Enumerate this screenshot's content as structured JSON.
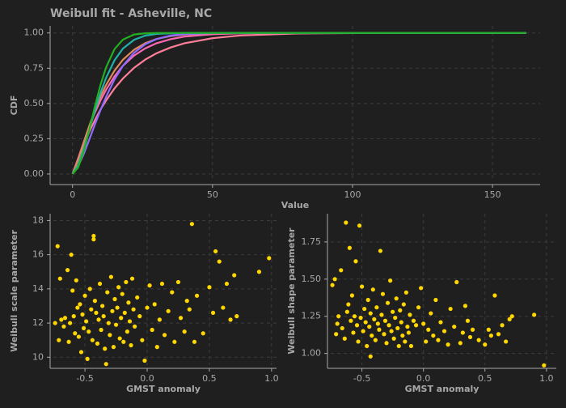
{
  "chart_data": [
    {
      "type": "line",
      "title": "Weibull fit - Asheville, NC",
      "xlabel": "Value",
      "ylabel": "CDF",
      "x": [
        0,
        2,
        4,
        6,
        8,
        10,
        12,
        15,
        18,
        22,
        26,
        30,
        35,
        40,
        50,
        60,
        80,
        100,
        130,
        162
      ],
      "series": [
        {
          "color": "#ff7f9a",
          "values": [
            0,
            0.106,
            0.208,
            0.3,
            0.383,
            0.457,
            0.522,
            0.607,
            0.677,
            0.753,
            0.811,
            0.856,
            0.897,
            0.927,
            0.963,
            0.982,
            0.996,
            0.999,
            1,
            1
          ]
        },
        {
          "color": "#ff69b4",
          "values": [
            0,
            0.11,
            0.227,
            0.337,
            0.436,
            0.522,
            0.598,
            0.692,
            0.767,
            0.84,
            0.891,
            0.927,
            0.956,
            0.974,
            0.991,
            0.997,
            1,
            1,
            1,
            1
          ]
        },
        {
          "color": "#e08a5a",
          "values": [
            0,
            0.101,
            0.224,
            0.343,
            0.452,
            0.549,
            0.632,
            0.733,
            0.81,
            0.881,
            0.928,
            0.957,
            0.978,
            0.989,
            0.997,
            1,
            1,
            1,
            1,
            1
          ]
        },
        {
          "color": "#8f6bff",
          "values": [
            0,
            0.053,
            0.142,
            0.245,
            0.351,
            0.453,
            0.548,
            0.67,
            0.767,
            0.86,
            0.92,
            0.957,
            0.981,
            0.992,
            0.999,
            1,
            1,
            1,
            1,
            1
          ]
        },
        {
          "color": "#20b2aa",
          "values": [
            0,
            0.063,
            0.18,
            0.316,
            0.451,
            0.576,
            0.683,
            0.806,
            0.889,
            0.952,
            0.981,
            0.993,
            0.998,
            1,
            1,
            1,
            1,
            1,
            1,
            1
          ]
        },
        {
          "color": "#22b022",
          "values": [
            0,
            0.046,
            0.161,
            0.315,
            0.48,
            0.632,
            0.757,
            0.885,
            0.953,
            0.989,
            0.998,
            1,
            1,
            1,
            1,
            1,
            1,
            1,
            1,
            1
          ]
        }
      ],
      "xlim": [
        -8,
        167
      ],
      "xticks": [
        0,
        50,
        100,
        150
      ],
      "ylim": [
        -0.075,
        1.05
      ],
      "yticks": [
        {
          "value": 0,
          "label": "0.00"
        },
        0.25,
        {
          "value": 0.5,
          "label": "0.50"
        },
        0.75,
        {
          "value": 1,
          "label": "1.00"
        }
      ],
      "grid": true
    },
    {
      "type": "scatter",
      "xlabel": "GMST anomaly",
      "ylabel": "Weibull scale parameter",
      "color": "#ffd700",
      "x": [
        -0.74,
        -0.72,
        -0.71,
        -0.7,
        -0.69,
        -0.67,
        -0.66,
        -0.64,
        -0.63,
        -0.62,
        -0.61,
        -0.6,
        -0.59,
        -0.58,
        -0.57,
        -0.56,
        -0.55,
        -0.54,
        -0.53,
        -0.52,
        -0.51,
        -0.5,
        -0.49,
        -0.48,
        -0.47,
        -0.46,
        -0.45,
        -0.44,
        -0.43,
        -0.43,
        -0.42,
        -0.41,
        -0.4,
        -0.39,
        -0.38,
        -0.37,
        -0.36,
        -0.35,
        -0.34,
        -0.33,
        -0.32,
        -0.31,
        -0.3,
        -0.29,
        -0.28,
        -0.27,
        -0.26,
        -0.25,
        -0.24,
        -0.23,
        -0.22,
        -0.21,
        -0.2,
        -0.19,
        -0.18,
        -0.17,
        -0.16,
        -0.15,
        -0.14,
        -0.13,
        -0.12,
        -0.11,
        -0.1,
        -0.08,
        -0.06,
        -0.04,
        -0.02,
        0.0,
        0.02,
        0.04,
        0.06,
        0.08,
        0.1,
        0.12,
        0.14,
        0.17,
        0.2,
        0.22,
        0.25,
        0.27,
        0.3,
        0.32,
        0.34,
        0.36,
        0.38,
        0.4,
        0.45,
        0.5,
        0.53,
        0.55,
        0.58,
        0.61,
        0.64,
        0.67,
        0.7,
        0.72,
        0.9,
        0.98
      ],
      "values": [
        12.0,
        16.5,
        11.0,
        14.6,
        12.2,
        11.8,
        12.3,
        15.1,
        10.9,
        12.0,
        16.0,
        13.9,
        12.4,
        11.4,
        14.5,
        12.9,
        11.2,
        13.1,
        10.3,
        12.5,
        11.7,
        13.6,
        12.1,
        9.9,
        11.5,
        14.0,
        12.8,
        11.0,
        17.1,
        16.9,
        13.3,
        12.6,
        10.8,
        12.2,
        14.3,
        11.6,
        13.0,
        12.4,
        10.5,
        9.6,
        13.8,
        12.0,
        11.3,
        14.7,
        12.7,
        10.6,
        13.4,
        11.9,
        12.9,
        14.1,
        11.1,
        12.3,
        13.7,
        10.9,
        12.6,
        14.4,
        11.5,
        13.2,
        12.1,
        10.7,
        14.6,
        12.8,
        11.8,
        13.5,
        12.4,
        11.0,
        9.8,
        12.9,
        14.2,
        11.6,
        13.1,
        10.6,
        12.2,
        14.3,
        11.3,
        12.7,
        13.8,
        10.9,
        14.4,
        12.3,
        11.5,
        13.3,
        12.8,
        17.8,
        10.9,
        13.6,
        11.4,
        14.1,
        12.6,
        16.2,
        15.6,
        12.9,
        14.3,
        12.2,
        14.8,
        12.4,
        15.0,
        15.8
      ],
      "xlim": [
        -0.78,
        1.04
      ],
      "xticks": [
        -0.5,
        {
          "value": 0,
          "label": "0.0"
        },
        0.5,
        {
          "value": 1,
          "label": "1.0"
        }
      ],
      "ylim": [
        9.35,
        18.4
      ],
      "yticks": [
        10,
        12,
        14,
        16,
        18
      ],
      "grid": true
    },
    {
      "type": "scatter",
      "xlabel": "GMST anomaly",
      "ylabel": "Weibull shape parameter",
      "color": "#ffd700",
      "x": [
        -0.74,
        -0.72,
        -0.71,
        -0.7,
        -0.69,
        -0.67,
        -0.66,
        -0.64,
        -0.63,
        -0.62,
        -0.61,
        -0.6,
        -0.59,
        -0.58,
        -0.57,
        -0.56,
        -0.55,
        -0.54,
        -0.53,
        -0.52,
        -0.51,
        -0.5,
        -0.49,
        -0.48,
        -0.47,
        -0.46,
        -0.45,
        -0.44,
        -0.43,
        -0.43,
        -0.42,
        -0.41,
        -0.4,
        -0.39,
        -0.38,
        -0.37,
        -0.36,
        -0.35,
        -0.34,
        -0.33,
        -0.32,
        -0.31,
        -0.3,
        -0.29,
        -0.28,
        -0.27,
        -0.26,
        -0.25,
        -0.24,
        -0.23,
        -0.22,
        -0.21,
        -0.2,
        -0.19,
        -0.18,
        -0.17,
        -0.16,
        -0.15,
        -0.14,
        -0.13,
        -0.12,
        -0.11,
        -0.1,
        -0.08,
        -0.06,
        -0.04,
        -0.02,
        0.0,
        0.02,
        0.04,
        0.06,
        0.08,
        0.1,
        0.12,
        0.14,
        0.17,
        0.2,
        0.22,
        0.25,
        0.27,
        0.3,
        0.32,
        0.34,
        0.36,
        0.38,
        0.4,
        0.45,
        0.5,
        0.53,
        0.55,
        0.58,
        0.61,
        0.64,
        0.67,
        0.7,
        0.72,
        0.9,
        0.98
      ],
      "values": [
        1.46,
        1.5,
        1.13,
        1.2,
        1.25,
        1.56,
        1.17,
        1.1,
        1.88,
        1.28,
        1.33,
        1.71,
        1.22,
        1.39,
        1.14,
        1.25,
        1.62,
        1.19,
        1.08,
        1.86,
        1.24,
        1.45,
        1.15,
        1.3,
        1.21,
        1.05,
        1.36,
        1.18,
        1.27,
        0.98,
        1.12,
        1.43,
        1.23,
        1.09,
        1.31,
        1.2,
        1.16,
        1.69,
        1.26,
        1.4,
        1.13,
        1.22,
        1.07,
        1.34,
        1.19,
        1.49,
        1.15,
        1.28,
        1.1,
        1.24,
        1.37,
        1.17,
        1.05,
        1.29,
        1.21,
        1.12,
        1.33,
        1.08,
        1.41,
        1.18,
        1.14,
        1.26,
        1.05,
        1.22,
        1.19,
        1.31,
        1.44,
        1.2,
        1.08,
        1.16,
        1.27,
        1.12,
        1.36,
        1.09,
        1.21,
        1.15,
        1.06,
        1.3,
        1.18,
        1.48,
        1.07,
        1.14,
        1.32,
        1.22,
        1.11,
        1.16,
        1.09,
        1.06,
        1.16,
        1.12,
        1.39,
        1.13,
        1.19,
        1.08,
        1.23,
        1.25,
        1.26,
        0.92
      ],
      "xlim": [
        -0.78,
        1.08
      ],
      "xticks": [
        -0.5,
        {
          "value": 0,
          "label": "0.0"
        },
        0.5,
        {
          "value": 1,
          "label": "1.0"
        }
      ],
      "ylim": [
        0.9,
        1.94
      ],
      "yticks": [
        {
          "value": 1,
          "label": "1.00"
        },
        1.25,
        {
          "value": 1.5,
          "label": "1.50"
        },
        1.75
      ],
      "grid": true
    }
  ]
}
